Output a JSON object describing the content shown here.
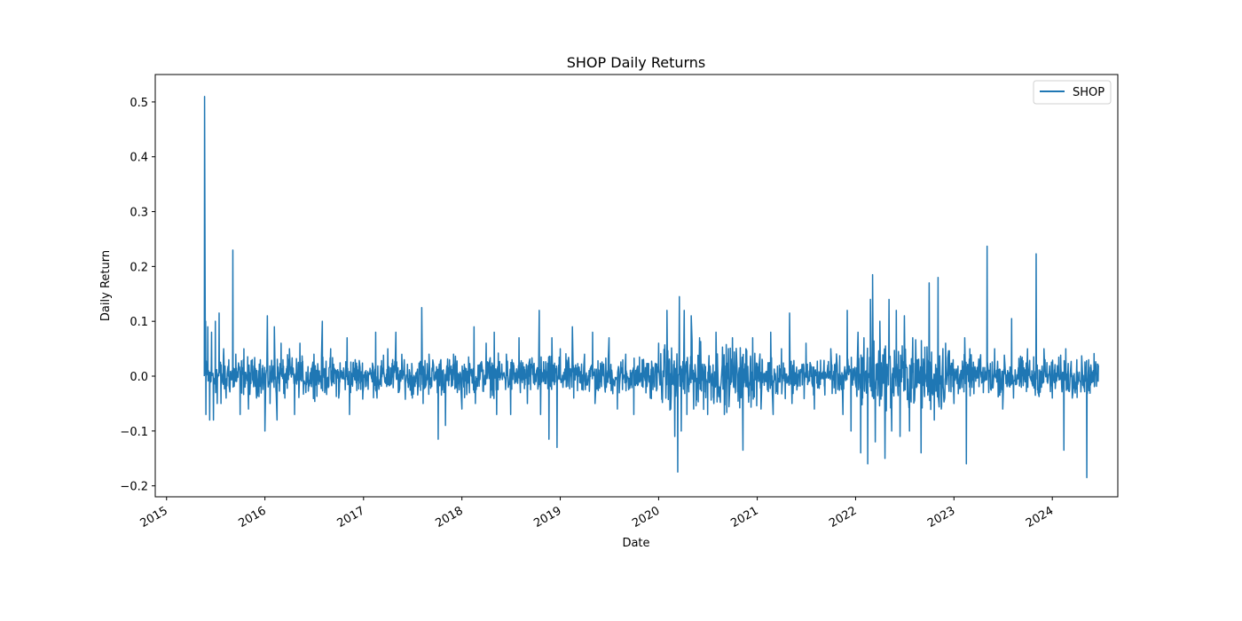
{
  "chart_data": {
    "type": "line",
    "title": "SHOP Daily Returns",
    "xlabel": "Date",
    "ylabel": "Daily Return",
    "xlim": [
      "2014-11-20",
      "2024-08-31"
    ],
    "ylim": [
      -0.22,
      0.55
    ],
    "y_ticks": [
      -0.2,
      -0.1,
      0.0,
      0.1,
      0.2,
      0.3,
      0.4,
      0.5
    ],
    "y_tick_labels": [
      "−0.2",
      "−0.1",
      "0.0",
      "0.1",
      "0.2",
      "0.3",
      "0.4",
      "0.5"
    ],
    "x_ticks": [
      "2015-01-01",
      "2016-01-01",
      "2017-01-01",
      "2018-01-01",
      "2019-01-01",
      "2020-01-01",
      "2021-01-01",
      "2022-01-01",
      "2023-01-01",
      "2024-01-01"
    ],
    "x_tick_labels": [
      "2015",
      "2016",
      "2017",
      "2018",
      "2019",
      "2020",
      "2021",
      "2022",
      "2023",
      "2024"
    ],
    "legend": {
      "position": "top-right",
      "entries": [
        "SHOP"
      ]
    },
    "grid": false,
    "series": [
      {
        "name": "SHOP",
        "color": "#1f77b4",
        "points": [
          [
            "2015-05-21",
            0.0
          ],
          [
            "2015-05-22",
            0.51
          ],
          [
            "2015-05-26",
            0.1
          ],
          [
            "2015-05-27",
            -0.07
          ],
          [
            "2015-06-03",
            0.09
          ],
          [
            "2015-06-10",
            -0.08
          ],
          [
            "2015-06-17",
            0.08
          ],
          [
            "2015-06-24",
            -0.08
          ],
          [
            "2015-07-01",
            0.1
          ],
          [
            "2015-07-08",
            -0.05
          ],
          [
            "2015-07-15",
            0.115
          ],
          [
            "2015-07-22",
            -0.05
          ],
          [
            "2015-08-01",
            0.05
          ],
          [
            "2015-08-10",
            -0.04
          ],
          [
            "2015-08-20",
            0.03
          ],
          [
            "2015-09-04",
            0.23
          ],
          [
            "2015-09-05",
            -0.02
          ],
          [
            "2015-09-15",
            0.04
          ],
          [
            "2015-10-01",
            -0.07
          ],
          [
            "2015-10-15",
            0.05
          ],
          [
            "2015-11-01",
            -0.06
          ],
          [
            "2015-11-15",
            0.03
          ],
          [
            "2015-12-01",
            -0.04
          ],
          [
            "2015-12-15",
            0.03
          ],
          [
            "2016-01-01",
            -0.1
          ],
          [
            "2016-01-10",
            0.11
          ],
          [
            "2016-01-20",
            -0.05
          ],
          [
            "2016-02-05",
            0.09
          ],
          [
            "2016-02-15",
            -0.08
          ],
          [
            "2016-03-01",
            0.06
          ],
          [
            "2016-03-15",
            -0.04
          ],
          [
            "2016-04-01",
            0.05
          ],
          [
            "2016-04-20",
            -0.07
          ],
          [
            "2016-05-10",
            0.06
          ],
          [
            "2016-06-01",
            -0.03
          ],
          [
            "2016-07-01",
            0.04
          ],
          [
            "2016-08-01",
            0.1
          ],
          [
            "2016-08-10",
            -0.03
          ],
          [
            "2016-09-01",
            0.05
          ],
          [
            "2016-10-01",
            -0.04
          ],
          [
            "2016-11-01",
            0.07
          ],
          [
            "2016-11-10",
            -0.07
          ],
          [
            "2016-12-01",
            0.03
          ],
          [
            "2017-01-01",
            -0.02
          ],
          [
            "2017-02-15",
            0.08
          ],
          [
            "2017-02-20",
            -0.04
          ],
          [
            "2017-04-01",
            0.05
          ],
          [
            "2017-05-01",
            0.08
          ],
          [
            "2017-05-10",
            -0.03
          ],
          [
            "2017-06-01",
            0.03
          ],
          [
            "2017-07-01",
            -0.04
          ],
          [
            "2017-08-05",
            0.125
          ],
          [
            "2017-08-10",
            -0.05
          ],
          [
            "2017-09-01",
            0.04
          ],
          [
            "2017-10-05",
            -0.115
          ],
          [
            "2017-10-15",
            0.03
          ],
          [
            "2017-11-01",
            -0.09
          ],
          [
            "2017-12-01",
            0.04
          ],
          [
            "2018-01-01",
            -0.06
          ],
          [
            "2018-02-15",
            0.09
          ],
          [
            "2018-02-20",
            -0.05
          ],
          [
            "2018-04-01",
            0.06
          ],
          [
            "2018-05-01",
            0.08
          ],
          [
            "2018-05-10",
            -0.07
          ],
          [
            "2018-06-15",
            0.04
          ],
          [
            "2018-07-01",
            -0.07
          ],
          [
            "2018-08-01",
            0.07
          ],
          [
            "2018-09-01",
            -0.05
          ],
          [
            "2018-10-15",
            0.12
          ],
          [
            "2018-10-20",
            -0.07
          ],
          [
            "2018-11-20",
            -0.115
          ],
          [
            "2018-12-01",
            0.07
          ],
          [
            "2018-12-20",
            -0.13
          ],
          [
            "2019-01-01",
            0.05
          ],
          [
            "2019-02-15",
            0.09
          ],
          [
            "2019-02-20",
            -0.04
          ],
          [
            "2019-04-01",
            0.04
          ],
          [
            "2019-05-01",
            0.08
          ],
          [
            "2019-05-10",
            -0.05
          ],
          [
            "2019-07-01",
            0.07
          ],
          [
            "2019-08-01",
            -0.06
          ],
          [
            "2019-09-01",
            0.04
          ],
          [
            "2019-10-01",
            -0.07
          ],
          [
            "2019-11-01",
            0.03
          ],
          [
            "2019-12-01",
            -0.04
          ],
          [
            "2020-01-01",
            0.06
          ],
          [
            "2020-02-01",
            0.12
          ],
          [
            "2020-02-15",
            -0.06
          ],
          [
            "2020-03-01",
            -0.11
          ],
          [
            "2020-03-12",
            -0.175
          ],
          [
            "2020-03-18",
            0.145
          ],
          [
            "2020-03-25",
            -0.1
          ],
          [
            "2020-04-05",
            0.12
          ],
          [
            "2020-04-15",
            -0.07
          ],
          [
            "2020-05-01",
            0.11
          ],
          [
            "2020-05-10",
            -0.06
          ],
          [
            "2020-06-01",
            0.07
          ],
          [
            "2020-07-01",
            -0.07
          ],
          [
            "2020-08-01",
            0.08
          ],
          [
            "2020-09-01",
            -0.07
          ],
          [
            "2020-10-01",
            0.07
          ],
          [
            "2020-11-09",
            -0.135
          ],
          [
            "2020-11-20",
            0.05
          ],
          [
            "2020-12-15",
            0.07
          ],
          [
            "2021-01-15",
            -0.06
          ],
          [
            "2021-02-20",
            0.08
          ],
          [
            "2021-03-01",
            -0.07
          ],
          [
            "2021-04-01",
            0.05
          ],
          [
            "2021-05-01",
            0.115
          ],
          [
            "2021-05-10",
            -0.05
          ],
          [
            "2021-07-01",
            0.06
          ],
          [
            "2021-08-01",
            -0.06
          ],
          [
            "2021-10-01",
            0.05
          ],
          [
            "2021-11-15",
            -0.07
          ],
          [
            "2021-12-01",
            0.12
          ],
          [
            "2021-12-15",
            -0.1
          ],
          [
            "2022-01-10",
            0.08
          ],
          [
            "2022-01-20",
            -0.14
          ],
          [
            "2022-02-01",
            0.07
          ],
          [
            "2022-02-15",
            -0.16
          ],
          [
            "2022-02-25",
            0.14
          ],
          [
            "2022-03-05",
            0.185
          ],
          [
            "2022-03-15",
            -0.12
          ],
          [
            "2022-04-01",
            0.1
          ],
          [
            "2022-04-20",
            -0.15
          ],
          [
            "2022-05-05",
            0.14
          ],
          [
            "2022-05-15",
            -0.1
          ],
          [
            "2022-06-01",
            0.12
          ],
          [
            "2022-06-15",
            -0.11
          ],
          [
            "2022-07-01",
            0.11
          ],
          [
            "2022-07-20",
            -0.1
          ],
          [
            "2022-08-01",
            0.07
          ],
          [
            "2022-09-01",
            -0.14
          ],
          [
            "2022-10-01",
            0.17
          ],
          [
            "2022-10-20",
            -0.08
          ],
          [
            "2022-11-03",
            0.18
          ],
          [
            "2022-11-15",
            -0.06
          ],
          [
            "2022-12-01",
            0.06
          ],
          [
            "2023-01-01",
            -0.05
          ],
          [
            "2023-02-10",
            0.07
          ],
          [
            "2023-02-16",
            -0.16
          ],
          [
            "2023-03-01",
            0.05
          ],
          [
            "2023-05-04",
            0.237
          ],
          [
            "2023-05-10",
            -0.03
          ],
          [
            "2023-06-01",
            0.05
          ],
          [
            "2023-07-01",
            -0.06
          ],
          [
            "2023-08-03",
            0.105
          ],
          [
            "2023-08-10",
            -0.04
          ],
          [
            "2023-10-01",
            0.05
          ],
          [
            "2023-11-02",
            0.223
          ],
          [
            "2023-11-10",
            -0.03
          ],
          [
            "2023-12-01",
            0.05
          ],
          [
            "2024-01-01",
            -0.04
          ],
          [
            "2024-02-13",
            -0.135
          ],
          [
            "2024-02-20",
            0.05
          ],
          [
            "2024-03-15",
            -0.04
          ],
          [
            "2024-04-01",
            0.03
          ],
          [
            "2024-05-08",
            -0.185
          ],
          [
            "2024-05-15",
            0.03
          ],
          [
            "2024-06-01",
            0.01
          ],
          [
            "2024-06-20",
            0.02
          ]
        ]
      }
    ]
  }
}
